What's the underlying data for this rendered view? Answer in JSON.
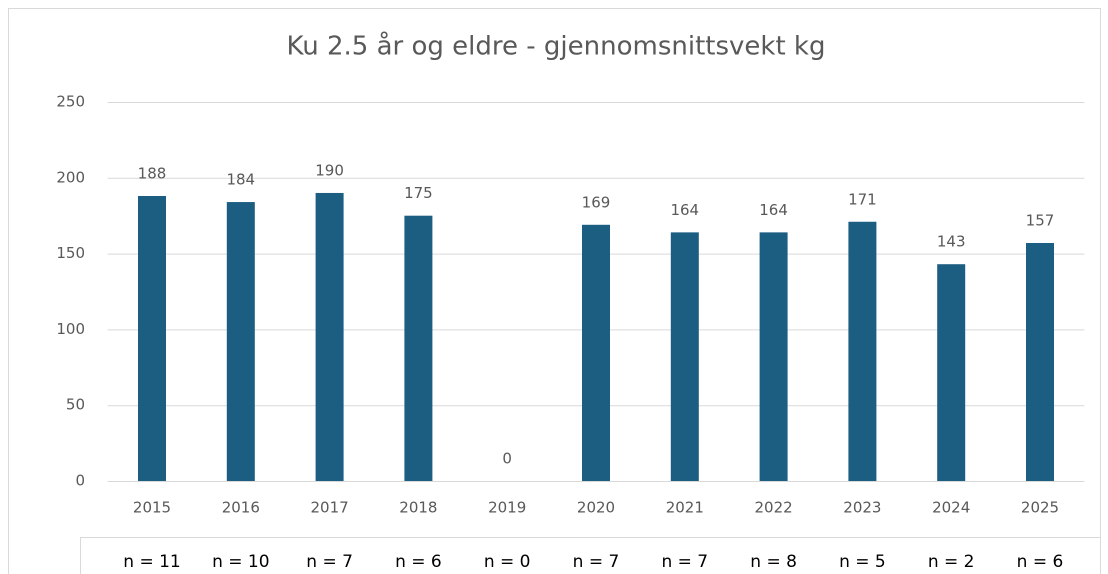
{
  "chart_data": {
    "type": "bar",
    "title": "Ku 2.5 år og eldre - gjennomsnittsvekt kg",
    "categories": [
      "2015",
      "2016",
      "2017",
      "2018",
      "2019",
      "2020",
      "2021",
      "2022",
      "2023",
      "2024",
      "2025"
    ],
    "values": [
      188,
      184,
      190,
      175,
      0,
      169,
      164,
      164,
      171,
      143,
      157
    ],
    "color": "#1b5e82",
    "ylim": [
      0,
      250
    ],
    "yticks": [
      0,
      50,
      100,
      150,
      200,
      250
    ],
    "grid": true,
    "sample_labels": [
      "n = 11",
      "n = 10",
      "n = 7",
      "n = 6",
      "n = 0",
      "n = 7",
      "n = 7",
      "n = 8",
      "n = 5",
      "n = 2",
      "n = 6"
    ]
  }
}
